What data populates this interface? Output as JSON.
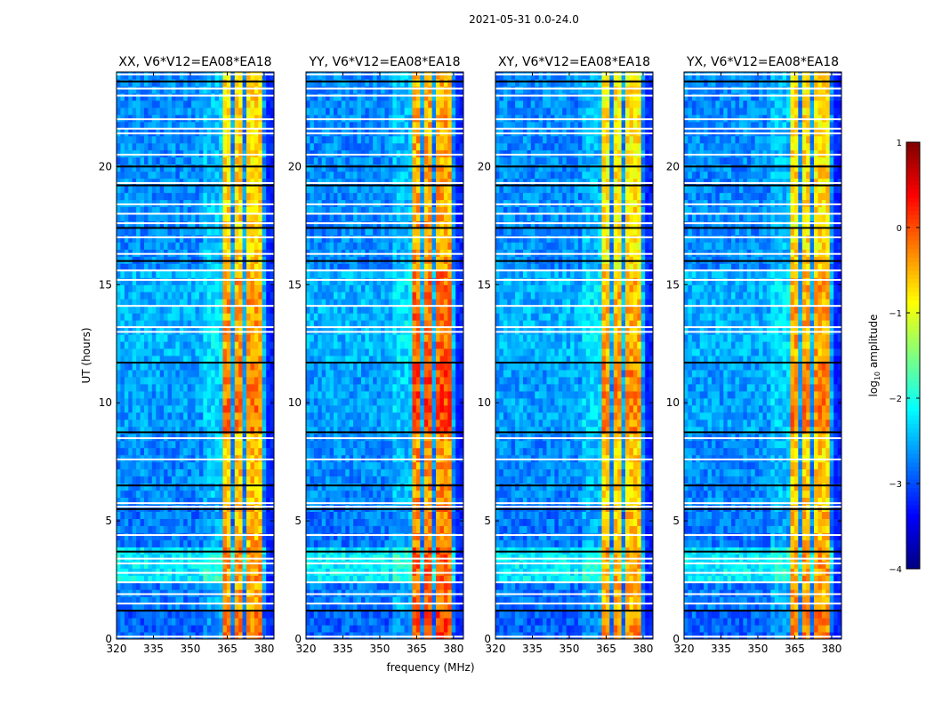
{
  "chart_data": {
    "type": "heatmap",
    "title": "2021-05-31 0.0-24.0",
    "xlabel": "frequency (MHz)",
    "ylabel": "UT (hours)",
    "xlim": [
      320,
      384
    ],
    "ylim": [
      0,
      24
    ],
    "xticks": [
      320,
      335,
      350,
      365,
      380
    ],
    "yticks": [
      0,
      5,
      10,
      15,
      20
    ],
    "panels": [
      {
        "title": "XX, V6*V12=EA08*EA18",
        "band_boost": 0.0
      },
      {
        "title": "YY, V6*V12=EA08*EA18",
        "band_boost": 0.25
      },
      {
        "title": "XY, V6*V12=EA08*EA18",
        "band_boost": -0.1
      },
      {
        "title": "YX, V6*V12=EA08*EA18",
        "band_boost": -0.05
      }
    ],
    "rfi_subbands_mhz": [
      [
        363,
        366.8
      ],
      [
        367.6,
        371.4
      ],
      [
        372.2,
        375.6
      ],
      [
        376.4,
        379.8
      ]
    ],
    "time_segments": [
      {
        "t0": 0.0,
        "t1": 1.2,
        "background": -2.9,
        "band": -0.2
      },
      {
        "t0": 1.2,
        "t1": 2.3,
        "background": -2.8,
        "band": -0.4
      },
      {
        "t0": 2.3,
        "t1": 3.7,
        "background": -2.2,
        "band": -0.3
      },
      {
        "t0": 3.7,
        "t1": 5.5,
        "background": -2.8,
        "band": -0.5
      },
      {
        "t0": 5.5,
        "t1": 8.7,
        "background": -2.7,
        "band": -0.6
      },
      {
        "t0": 8.7,
        "t1": 11.7,
        "background": -2.6,
        "band": -0.2
      },
      {
        "t0": 11.7,
        "t1": 15.5,
        "background": -2.5,
        "band": -0.4
      },
      {
        "t0": 15.5,
        "t1": 24.0,
        "background": -2.7,
        "band": -0.7
      }
    ],
    "flagged_white_hours": [
      0.1,
      1.5,
      1.9,
      2.4,
      2.8,
      3.2,
      3.4,
      4.4,
      5.6,
      5.75,
      7.6,
      8.5,
      13.0,
      13.2,
      14.1,
      15.2,
      15.6,
      16.3,
      17.0,
      17.6,
      18.0,
      18.4,
      19.3,
      20.5,
      21.4,
      21.6,
      22.0,
      23.0,
      23.3,
      23.9
    ],
    "flagged_black_hours": [
      1.2,
      3.7,
      5.5,
      6.5,
      8.75,
      11.7,
      16.0,
      17.4,
      19.2,
      20.0,
      23.6
    ],
    "colorbar": {
      "label": "log10 amplitude",
      "label_base": "log",
      "label_sub": "10",
      "label_rest": " amplitude",
      "range": [
        -4,
        1
      ],
      "ticks": [
        "1",
        "0",
        "−1",
        "−2",
        "−3",
        "−4"
      ]
    }
  }
}
